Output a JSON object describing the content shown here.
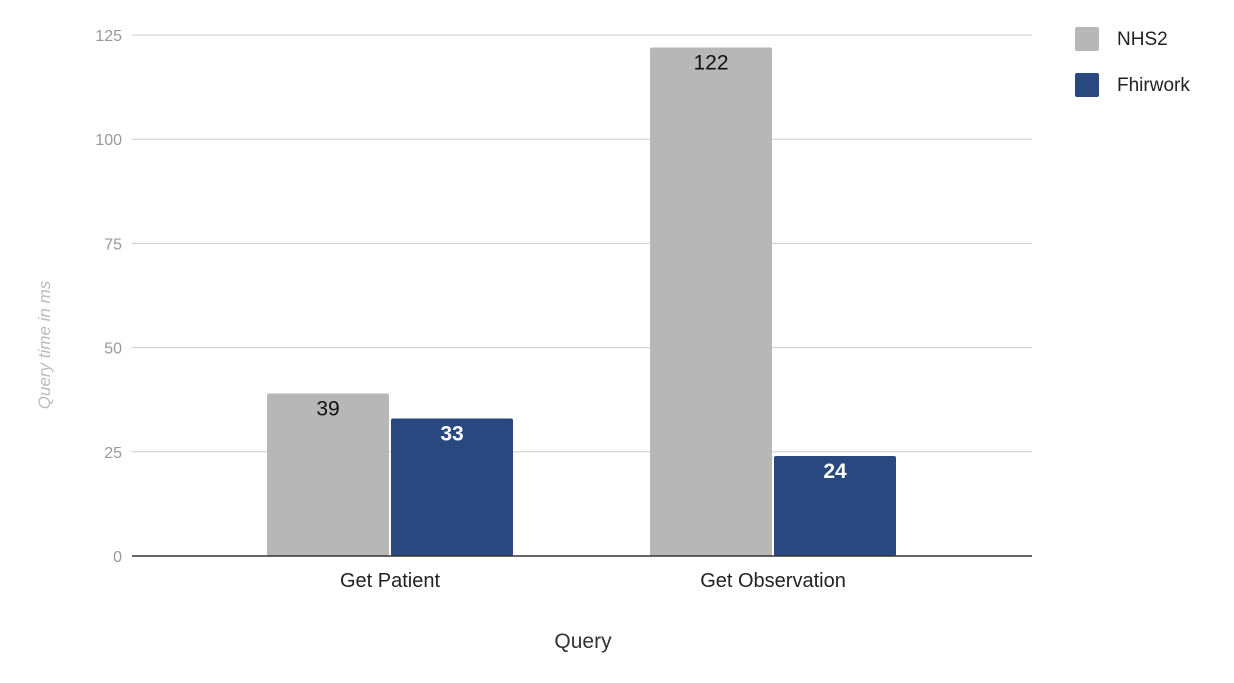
{
  "chart_data": {
    "type": "bar",
    "title": "",
    "xlabel": "Query",
    "ylabel": "Query time in ms",
    "categories": [
      "Get Patient",
      "Get Observation"
    ],
    "series": [
      {
        "name": "NHS2",
        "values": [
          39,
          122
        ],
        "color": "#b7b7b7",
        "label_color": "#111111"
      },
      {
        "name": "Fhirwork",
        "values": [
          33,
          24
        ],
        "color": "#28487f",
        "label_color": "#ffffff"
      }
    ],
    "ylim": [
      0,
      125
    ],
    "yticks": [
      "0",
      "25",
      "50",
      "75",
      "100",
      "125"
    ],
    "grid": true,
    "legend_position": "top-right",
    "colors": {
      "grid": "#cccccc",
      "axis": "#333333",
      "tick_text": "#999999",
      "axis_title": "#333333",
      "ylabel_text": "#bbbbbb"
    }
  }
}
